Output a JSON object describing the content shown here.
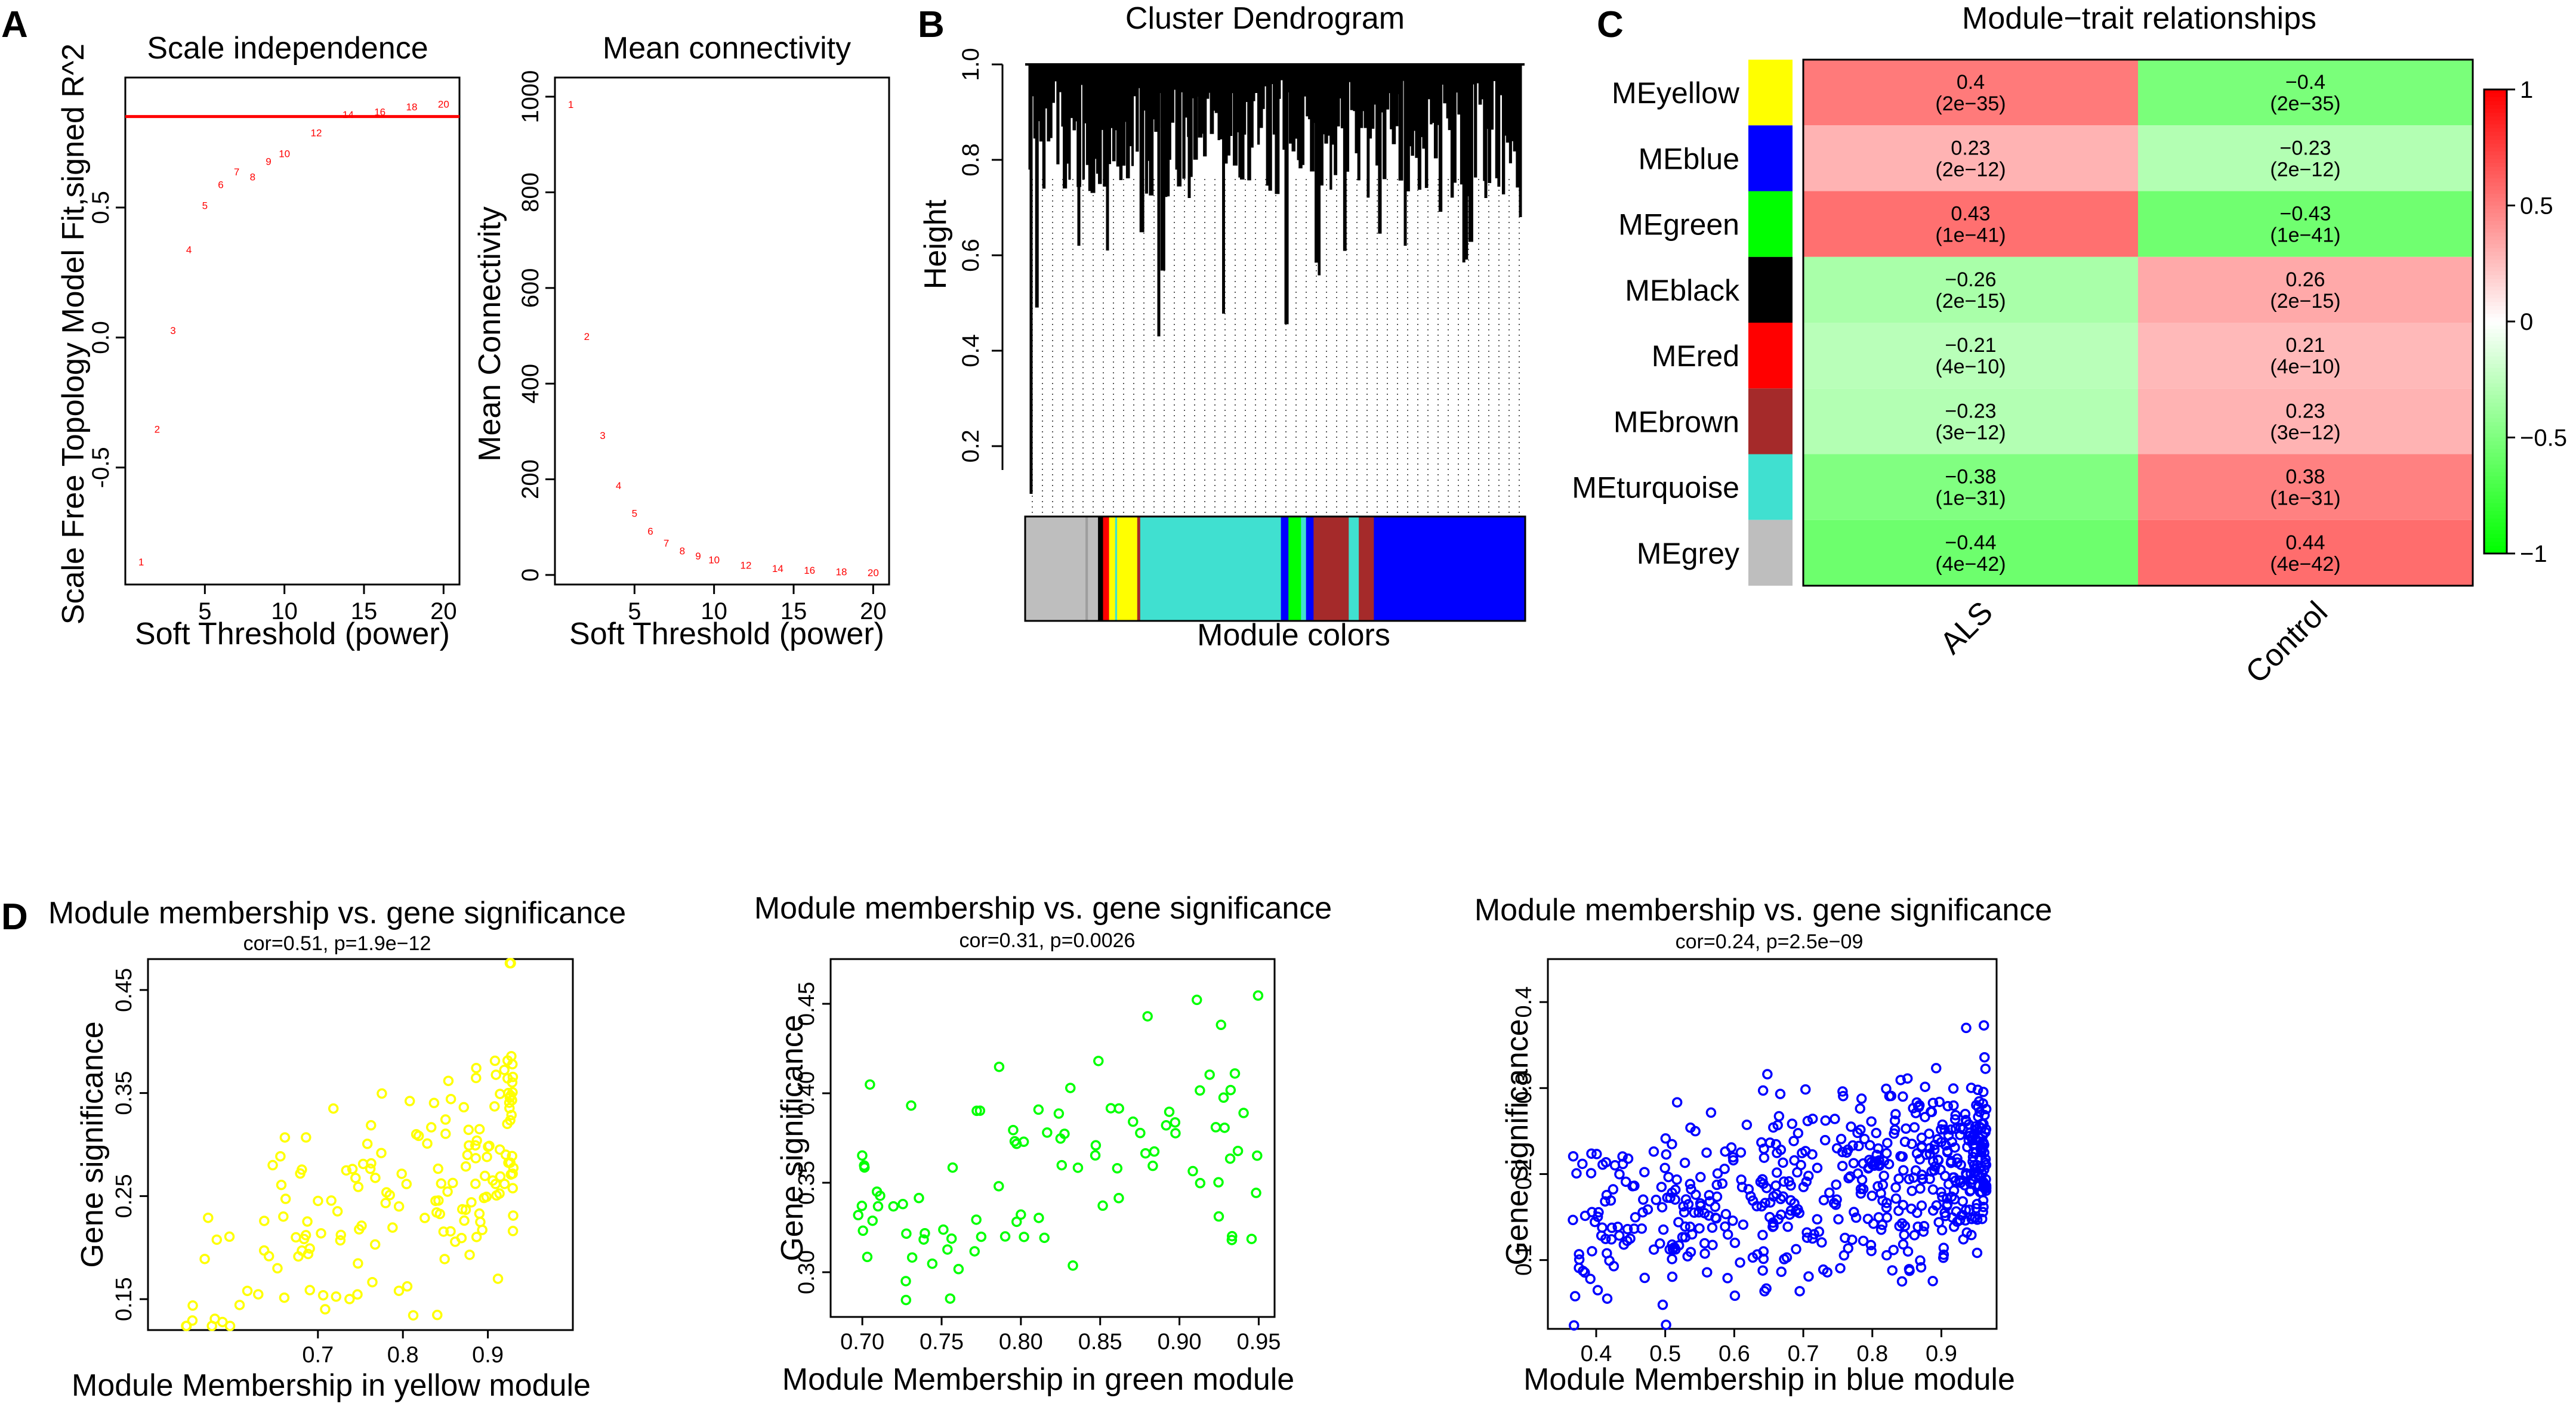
{
  "panels": {
    "A": "A",
    "B": "B",
    "C": "C",
    "D": "D"
  },
  "colors": {
    "axis": "#000000",
    "red_line": "#ff0000",
    "point_label": "#ff0000",
    "heat_pos": "#ff0000",
    "heat_mid": "#ffffff",
    "heat_neg": "#00ff00",
    "yellow": "#ffff00",
    "green": "#00ff00",
    "blue": "#0000ff"
  },
  "chart_data": [
    {
      "id": "scale_independence",
      "type": "scatter",
      "title": "Scale independence",
      "xlabel": "Soft Threshold (power)",
      "ylabel": "Scale Free Topology Model Fit,signed R^2",
      "xlim": [
        0,
        21
      ],
      "ylim": [
        -0.95,
        1.0
      ],
      "xticks": [
        5,
        10,
        15,
        20
      ],
      "yticks": [
        -0.5,
        0.0,
        0.5
      ],
      "ytick_labels": [
        "-0.5",
        "0.0",
        "0.5"
      ],
      "hline": 0.85,
      "points": [
        {
          "x": 1,
          "y": -0.86,
          "label": "1"
        },
        {
          "x": 2,
          "y": -0.35,
          "label": "2"
        },
        {
          "x": 3,
          "y": 0.03,
          "label": "3"
        },
        {
          "x": 4,
          "y": 0.34,
          "label": "4"
        },
        {
          "x": 5,
          "y": 0.51,
          "label": "5"
        },
        {
          "x": 6,
          "y": 0.59,
          "label": "6"
        },
        {
          "x": 7,
          "y": 0.64,
          "label": "7"
        },
        {
          "x": 8,
          "y": 0.62,
          "label": "8"
        },
        {
          "x": 9,
          "y": 0.68,
          "label": "9"
        },
        {
          "x": 10,
          "y": 0.71,
          "label": "10"
        },
        {
          "x": 12,
          "y": 0.79,
          "label": "12"
        },
        {
          "x": 14,
          "y": 0.86,
          "label": "14"
        },
        {
          "x": 16,
          "y": 0.87,
          "label": "16"
        },
        {
          "x": 18,
          "y": 0.89,
          "label": "18"
        },
        {
          "x": 20,
          "y": 0.9,
          "label": "20"
        }
      ]
    },
    {
      "id": "mean_connectivity",
      "type": "scatter",
      "title": "Mean connectivity",
      "xlabel": "Soft Threshold (power)",
      "ylabel": "Mean Connectivity",
      "xlim": [
        0,
        21
      ],
      "ylim": [
        -20,
        1040
      ],
      "xticks": [
        5,
        10,
        15,
        20
      ],
      "yticks": [
        0,
        200,
        400,
        600,
        800,
        1000
      ],
      "ytick_labels": [
        "0",
        "200",
        "400",
        "600",
        "800",
        "1000"
      ],
      "points": [
        {
          "x": 1,
          "y": 985,
          "label": "1"
        },
        {
          "x": 2,
          "y": 500,
          "label": "2"
        },
        {
          "x": 3,
          "y": 293,
          "label": "3"
        },
        {
          "x": 4,
          "y": 188,
          "label": "4"
        },
        {
          "x": 5,
          "y": 130,
          "label": "5"
        },
        {
          "x": 6,
          "y": 93,
          "label": "6"
        },
        {
          "x": 7,
          "y": 68,
          "label": "7"
        },
        {
          "x": 8,
          "y": 52,
          "label": "8"
        },
        {
          "x": 9,
          "y": 41,
          "label": "9"
        },
        {
          "x": 10,
          "y": 33,
          "label": "10"
        },
        {
          "x": 12,
          "y": 22,
          "label": "12"
        },
        {
          "x": 14,
          "y": 15,
          "label": "14"
        },
        {
          "x": 16,
          "y": 11,
          "label": "16"
        },
        {
          "x": 18,
          "y": 8,
          "label": "18"
        },
        {
          "x": 20,
          "y": 6,
          "label": "20"
        }
      ]
    },
    {
      "id": "cluster_dendrogram",
      "type": "dendrogram",
      "title": "Cluster Dendrogram",
      "ylabel": "Height",
      "xlabel": "Module colors",
      "ylim": [
        0.05,
        1.0
      ],
      "yticks": [
        0.2,
        0.4,
        0.6,
        0.8,
        1.0
      ],
      "ytick_labels": [
        "0.2",
        "0.4",
        "0.6",
        "0.8",
        "1.0"
      ],
      "module_color_segments": [
        {
          "color": "#bebebe",
          "width": 0.12
        },
        {
          "color": "#9e9e9e",
          "width": 0.005
        },
        {
          "color": "#bebebe",
          "width": 0.02
        },
        {
          "color": "#000000",
          "width": 0.01
        },
        {
          "color": "#ff0000",
          "width": 0.012
        },
        {
          "color": "#ffff00",
          "width": 0.012
        },
        {
          "color": "#40e0d0",
          "width": 0.004
        },
        {
          "color": "#ffff00",
          "width": 0.04
        },
        {
          "color": "#a52a2a",
          "width": 0.006
        },
        {
          "color": "#40e0d0",
          "width": 0.28
        },
        {
          "color": "#0000ff",
          "width": 0.015
        },
        {
          "color": "#00ff00",
          "width": 0.025
        },
        {
          "color": "#40e0d0",
          "width": 0.01
        },
        {
          "color": "#0000ff",
          "width": 0.015
        },
        {
          "color": "#a52a2a",
          "width": 0.07
        },
        {
          "color": "#40e0d0",
          "width": 0.02
        },
        {
          "color": "#a52a2a",
          "width": 0.03
        },
        {
          "color": "#0000ff",
          "width": 0.3
        }
      ]
    },
    {
      "id": "module_trait",
      "type": "heatmap",
      "title": "Module−trait relationships",
      "columns": [
        "ALS",
        "Control"
      ],
      "rows": [
        {
          "name": "MEyellow",
          "color": "#ffff00",
          "values": [
            0.4,
            -0.4
          ],
          "labels": [
            "0.4",
            "−0.4"
          ],
          "pvalues": [
            "(2e−35)",
            "(2e−35)"
          ]
        },
        {
          "name": "MEblue",
          "color": "#0000ff",
          "values": [
            0.23,
            -0.23
          ],
          "labels": [
            "0.23",
            "−0.23"
          ],
          "pvalues": [
            "(2e−12)",
            "(2e−12)"
          ]
        },
        {
          "name": "MEgreen",
          "color": "#00ff00",
          "values": [
            0.43,
            -0.43
          ],
          "labels": [
            "0.43",
            "−0.43"
          ],
          "pvalues": [
            "(1e−41)",
            "(1e−41)"
          ]
        },
        {
          "name": "MEblack",
          "color": "#000000",
          "values": [
            -0.26,
            0.26
          ],
          "labels": [
            "−0.26",
            "0.26"
          ],
          "pvalues": [
            "(2e−15)",
            "(2e−15)"
          ]
        },
        {
          "name": "MEred",
          "color": "#ff0000",
          "values": [
            -0.21,
            0.21
          ],
          "labels": [
            "−0.21",
            "0.21"
          ],
          "pvalues": [
            "(4e−10)",
            "(4e−10)"
          ]
        },
        {
          "name": "MEbrown",
          "color": "#a52a2a",
          "values": [
            -0.23,
            0.23
          ],
          "labels": [
            "−0.23",
            "0.23"
          ],
          "pvalues": [
            "(3e−12)",
            "(3e−12)"
          ]
        },
        {
          "name": "MEturquoise",
          "color": "#40e0d0",
          "values": [
            -0.38,
            0.38
          ],
          "labels": [
            "−0.38",
            "0.38"
          ],
          "pvalues": [
            "(1e−31)",
            "(1e−31)"
          ]
        },
        {
          "name": "MEgrey",
          "color": "#bebebe",
          "values": [
            -0.44,
            0.44
          ],
          "labels": [
            "−0.44",
            "0.44"
          ],
          "pvalues": [
            "(4e−42)",
            "(4e−42)"
          ]
        }
      ],
      "colorbar": {
        "range": [
          -1,
          1
        ],
        "ticks": [
          1,
          0.5,
          0,
          -0.5,
          -1
        ],
        "tick_labels": [
          "1",
          "0.5",
          "0",
          "−0.5",
          "−1"
        ]
      }
    },
    {
      "id": "mm_gs_yellow",
      "type": "scatter",
      "title": "Module membership vs. gene significance",
      "subtitle": "cor=0.51, p=1.9e−12",
      "xlabel": "Module Membership in yellow module",
      "ylabel": "Gene significance",
      "color": "#ffff00",
      "xlim": [
        0.5,
        1.0
      ],
      "ylim": [
        0.12,
        0.48
      ],
      "xticks": [
        0.7,
        0.8,
        0.9
      ],
      "xtick_labels": [
        "0.7",
        "0.8",
        "0.9"
      ],
      "yticks": [
        0.15,
        0.25,
        0.35,
        0.45
      ],
      "ytick_labels": [
        "0.15",
        "0.25",
        "0.35",
        "0.45"
      ],
      "n": 170,
      "seed": 11
    },
    {
      "id": "mm_gs_green",
      "type": "scatter",
      "title": "Module membership vs. gene significance",
      "subtitle": "cor=0.31, p=0.0026",
      "xlabel": "Module Membership in green module",
      "ylabel": "Gene significance",
      "color": "#00ff00",
      "xlim": [
        0.68,
        0.96
      ],
      "ylim": [
        0.275,
        0.475
      ],
      "xticks": [
        0.7,
        0.75,
        0.8,
        0.85,
        0.9,
        0.95
      ],
      "xtick_labels": [
        "0.70",
        "0.75",
        "0.80",
        "0.85",
        "0.90",
        "0.95"
      ],
      "yticks": [
        0.3,
        0.35,
        0.4,
        0.45
      ],
      "ytick_labels": [
        "0.30",
        "0.35",
        "0.40",
        "0.45"
      ],
      "n": 95,
      "seed": 23
    },
    {
      "id": "mm_gs_blue",
      "type": "scatter",
      "title": "Module membership vs. gene significance",
      "subtitle": "cor=0.24, p=2.5e−09",
      "xlabel": "Module Membership in blue module",
      "ylabel": "Gene significance",
      "color": "#0000ff",
      "xlim": [
        0.33,
        0.98
      ],
      "ylim": [
        0.02,
        0.45
      ],
      "xticks": [
        0.4,
        0.5,
        0.6,
        0.7,
        0.8,
        0.9
      ],
      "xtick_labels": [
        "0.4",
        "0.5",
        "0.6",
        "0.7",
        "0.8",
        "0.9"
      ],
      "yticks": [
        0.1,
        0.2,
        0.3,
        0.4
      ],
      "ytick_labels": [
        "0.1",
        "0.2",
        "0.3",
        "0.4"
      ],
      "n": 560,
      "seed": 37
    }
  ]
}
